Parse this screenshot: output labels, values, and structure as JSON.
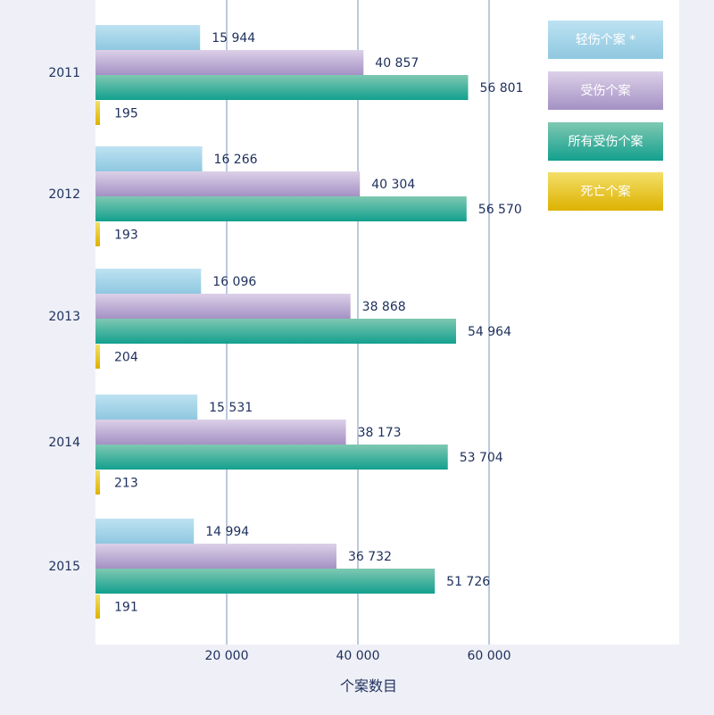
{
  "chart_data": {
    "type": "bar",
    "orientation": "horizontal",
    "categories": [
      "2011",
      "2012",
      "2013",
      "2014",
      "2015"
    ],
    "series": [
      {
        "name": "轻伤个案 *",
        "values": [
          15944,
          16266,
          16096,
          15531,
          14994
        ],
        "labels": [
          "15 944",
          "16 266",
          "16 096",
          "15 531",
          "14 994"
        ]
      },
      {
        "name": "受伤个案",
        "values": [
          40857,
          40304,
          38868,
          38173,
          36732
        ],
        "labels": [
          "40 857",
          "40 304",
          "38 868",
          "38 173",
          "36 732"
        ]
      },
      {
        "name": "所有受伤个案",
        "values": [
          56801,
          56570,
          54964,
          53704,
          51726
        ],
        "labels": [
          "56 801",
          "56 570",
          "54 964",
          "53 704",
          "51 726"
        ]
      },
      {
        "name": "死亡个案",
        "values": [
          195,
          193,
          204,
          213,
          191
        ],
        "labels": [
          "195",
          "193",
          "204",
          "213",
          "191"
        ]
      }
    ],
    "xlabel": "个案数目",
    "xticks": [
      20000,
      40000,
      60000
    ],
    "xtick_labels": [
      "20 000",
      "40 000",
      "60 000"
    ],
    "xlim": [
      0,
      89000
    ],
    "grid": true,
    "legend_position": "top-right",
    "colors": {
      "slight": [
        "#bde2f2",
        "#8fc8e0"
      ],
      "injured": [
        "#dcd0e8",
        "#a491c4"
      ],
      "all": [
        "#7fc8b2",
        "#13a08e"
      ],
      "death": [
        "#f3df6a",
        "#ddb100"
      ],
      "background": "#eff0f7",
      "plot_background": "#ffffff",
      "grid": "#7893bb",
      "text": "#1d2f5c"
    }
  }
}
